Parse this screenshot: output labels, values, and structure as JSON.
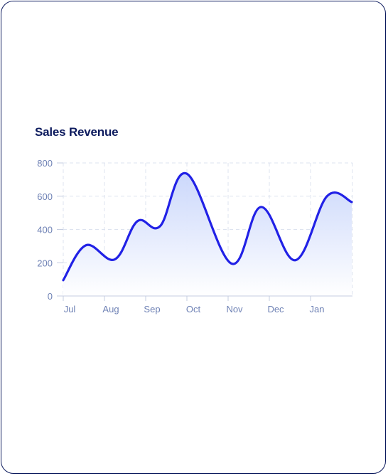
{
  "chart_data": {
    "type": "area",
    "title": "Sales Revenue",
    "xlabel": "",
    "ylabel": "",
    "categories": [
      "Jul",
      "Aug",
      "Sep",
      "Oct",
      "Nov",
      "Dec",
      "Jan"
    ],
    "x_range": [
      "Jul",
      "Jan"
    ],
    "ylim": [
      0,
      800
    ],
    "yticks": [
      0,
      200,
      400,
      600,
      800
    ],
    "grid": true,
    "legend": "none",
    "line_color": "#2121e6",
    "fill_color_top": "#c9d6fb",
    "fill_color_bottom": "#ffffff",
    "series": [
      {
        "points": [
          {
            "x": 0.0,
            "y": 95
          },
          {
            "x": 0.55,
            "y": 305
          },
          {
            "x": 1.25,
            "y": 220
          },
          {
            "x": 1.8,
            "y": 450
          },
          {
            "x": 2.35,
            "y": 420
          },
          {
            "x": 3.0,
            "y": 735
          },
          {
            "x": 4.08,
            "y": 195
          },
          {
            "x": 4.8,
            "y": 535
          },
          {
            "x": 5.63,
            "y": 215
          },
          {
            "x": 6.4,
            "y": 600
          },
          {
            "x": 7.0,
            "y": 565
          }
        ]
      }
    ]
  }
}
